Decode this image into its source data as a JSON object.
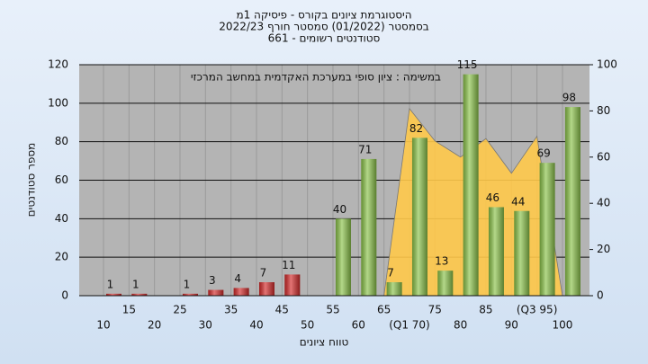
{
  "chart_data": {
    "type": "bar",
    "title": "היסטוגרמת ציונים בקורס - פיסיקה 1מ",
    "subtitle": "בסמסטר  (01/2022)  סמסטר חורף 2022/23",
    "subtitle2": "סטודנטים רשומים - 661",
    "annotation": "במשימה : ציון סופי במערכת האקדמית במחשב המרכזי",
    "xlabel": "טווח ציונים",
    "ylabel": "מספר סטודנטים",
    "categories": [
      "10",
      "15",
      "20",
      "25",
      "30",
      "35",
      "40",
      "45",
      "50",
      "55",
      "60",
      "65",
      "(Q1 70)",
      "75",
      "80",
      "85",
      "90",
      "(Q3 95)",
      "100"
    ],
    "values": [
      1,
      1,
      null,
      1,
      3,
      4,
      7,
      11,
      null,
      40,
      71,
      7,
      82,
      13,
      115,
      46,
      44,
      69,
      98
    ],
    "colors": [
      "#d42a2a",
      "#d42a2a",
      "#d42a2a",
      "#d42a2a",
      "#d42a2a",
      "#d42a2a",
      "#d42a2a",
      "#d42a2a",
      "#d42a2a",
      "#8bc34a",
      "#8bc34a",
      "#8bc34a",
      "#8bc34a",
      "#8bc34a",
      "#8bc34a",
      "#8bc34a",
      "#8bc34a",
      "#8bc34a",
      "#8bc34a"
    ],
    "area": {
      "axis": "y2",
      "color": "#ffc94a",
      "values": [
        null,
        null,
        null,
        null,
        null,
        null,
        null,
        null,
        null,
        null,
        null,
        0,
        81,
        67,
        60,
        68,
        53,
        69,
        0
      ]
    },
    "ylim": [
      0,
      120
    ],
    "yticks": [
      0,
      20,
      40,
      60,
      80,
      100,
      120
    ],
    "y2lim": [
      0,
      100
    ],
    "y2ticks": [
      0,
      20,
      40,
      60,
      80,
      100
    ],
    "grid": true
  }
}
